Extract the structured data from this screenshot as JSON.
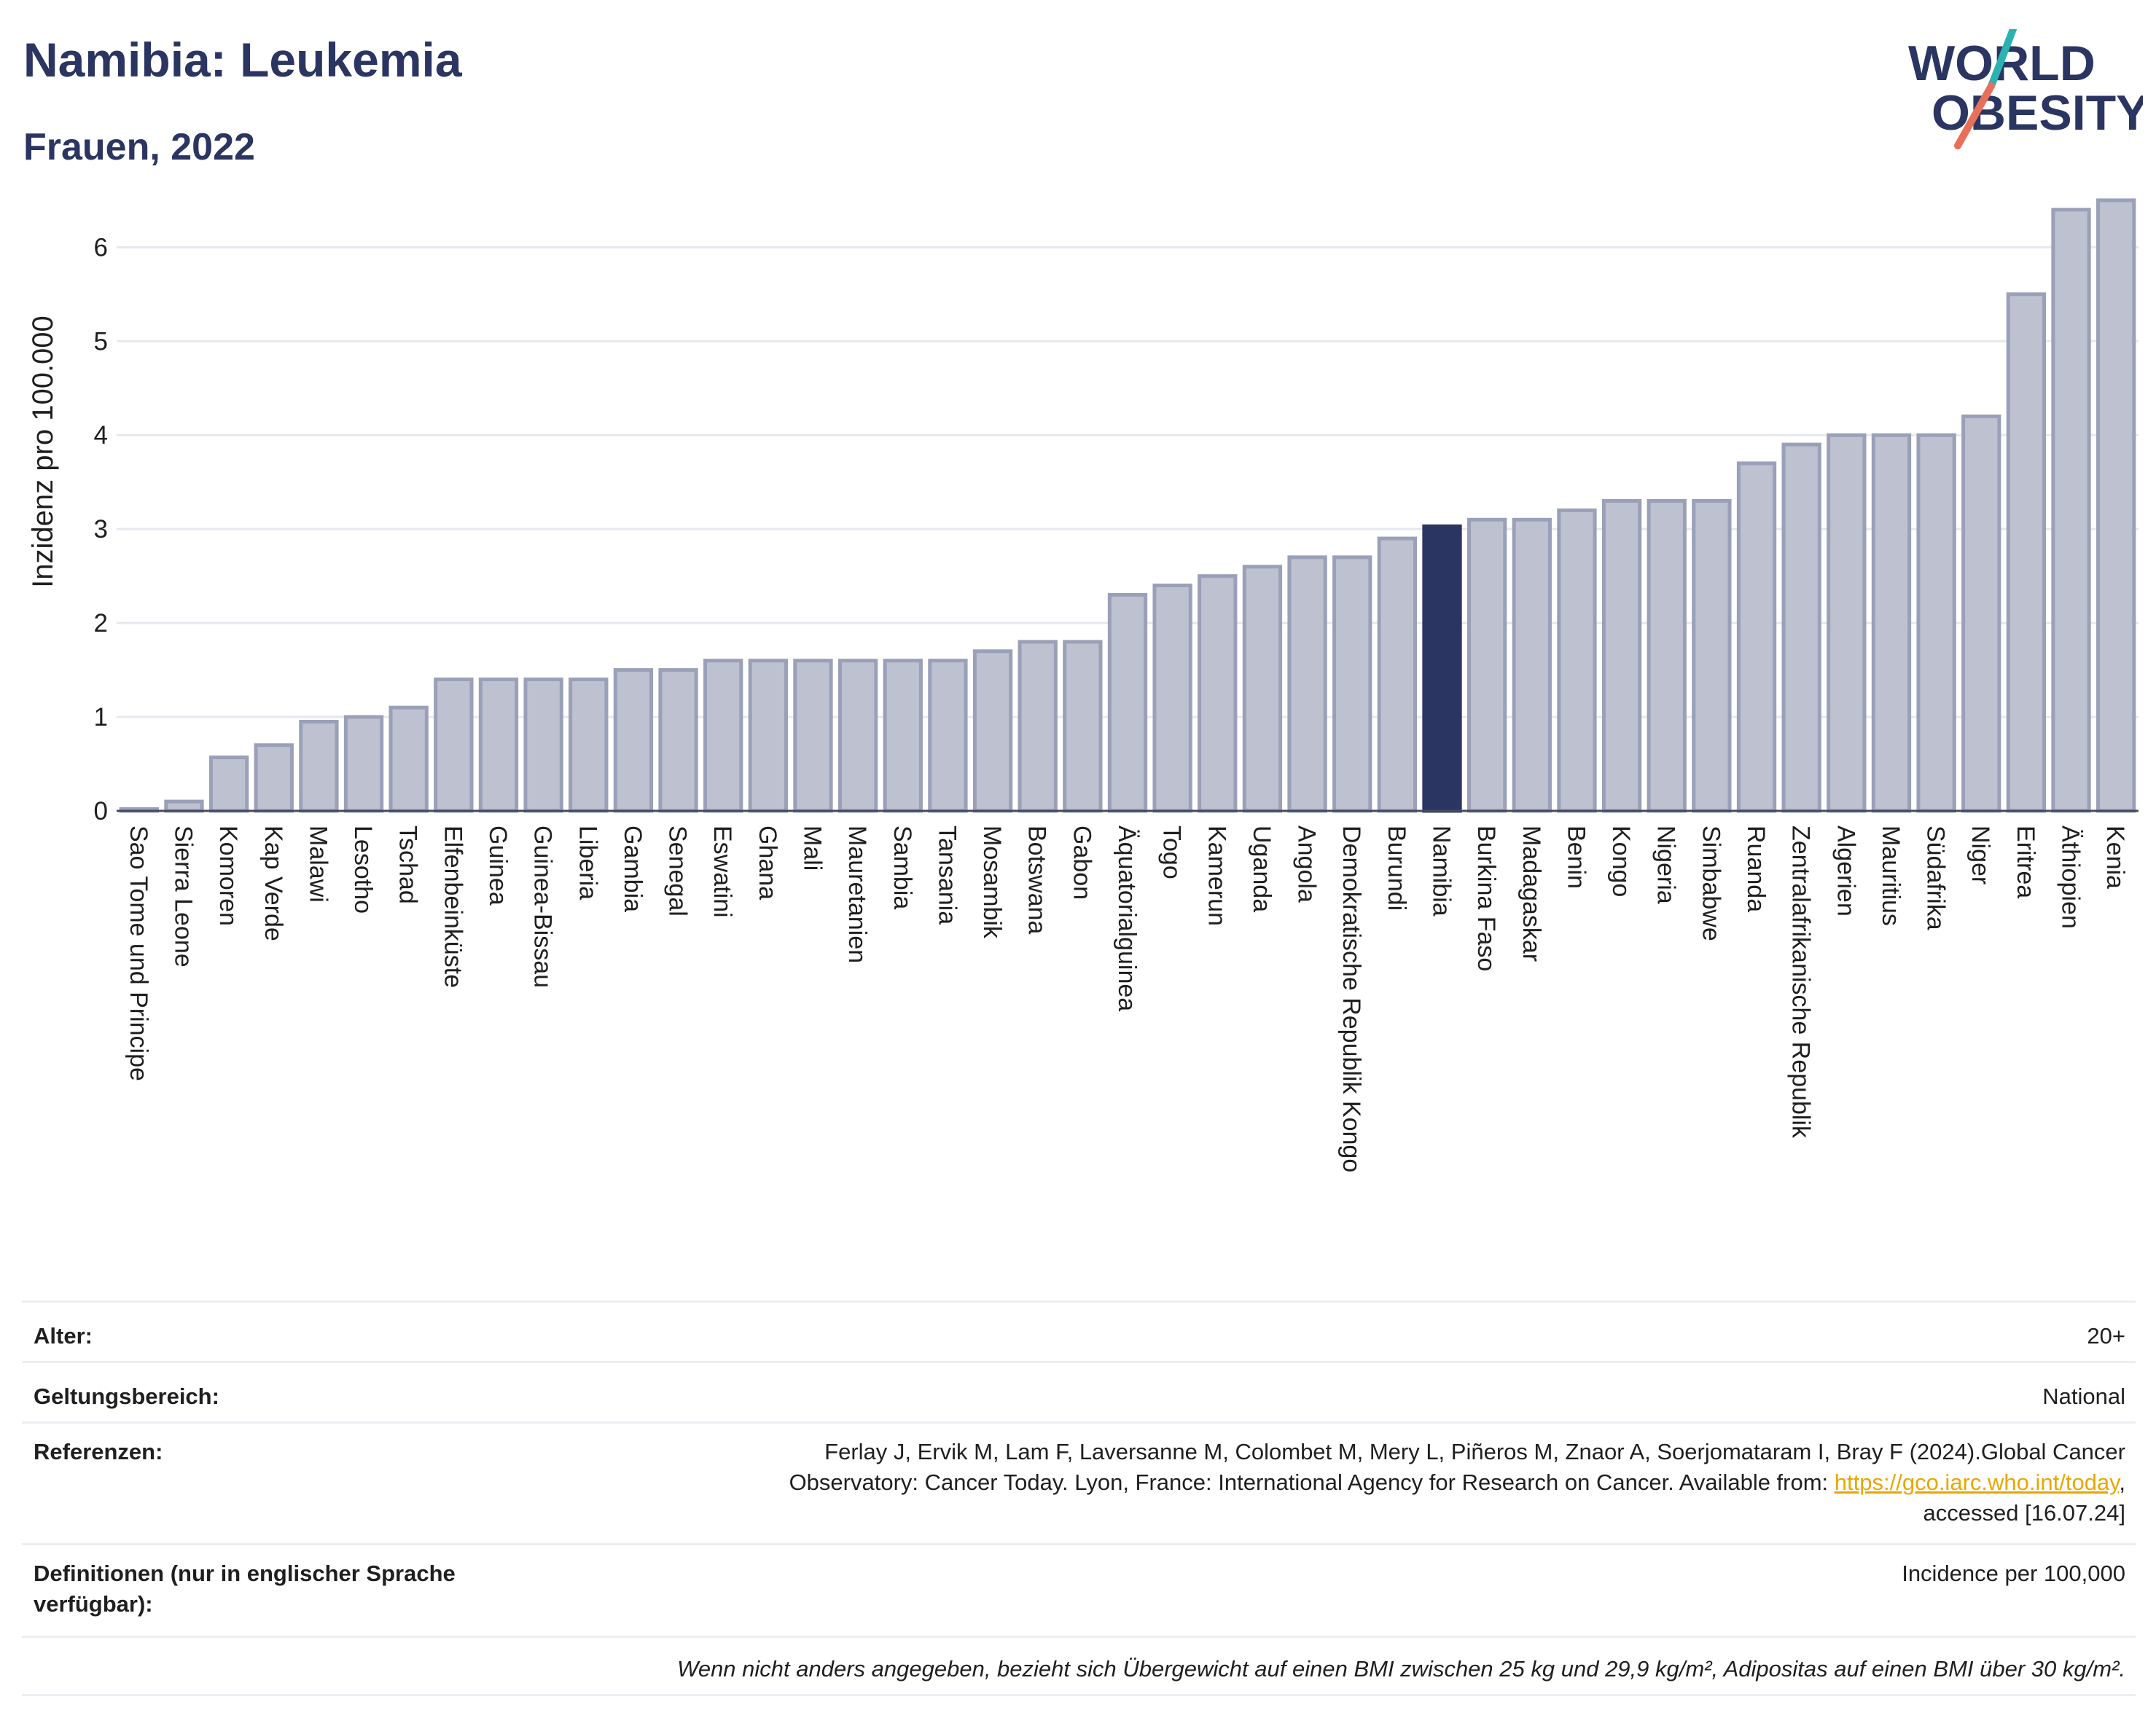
{
  "header": {
    "title": "Namibia: Leukemia",
    "subtitle": "Frauen, 2022",
    "logo_line1": "WORLD",
    "logo_line2": "OBESITY"
  },
  "colors": {
    "bar": "#bdc1d0",
    "bar_border": "#9aa0b8",
    "highlight": "#2b3561",
    "grid": "#e6e8ef",
    "text": "#1f1f1f",
    "logo_teal": "#2bb3b1",
    "logo_coral": "#e8705a"
  },
  "chart_data": {
    "type": "bar",
    "ylabel": "Inzidenz pro 100.000",
    "ylim": [
      0,
      6.6
    ],
    "yticks": [
      0,
      1,
      2,
      3,
      4,
      5,
      6
    ],
    "highlight": "Namibia",
    "categories": [
      "Sao Tome und Principe",
      "Sierra Leone",
      "Komoren",
      "Kap Verde",
      "Malawi",
      "Lesotho",
      "Tschad",
      "Elfenbeinküste",
      "Guinea",
      "Guinea-Bissau",
      "Liberia",
      "Gambia",
      "Senegal",
      "Eswatini",
      "Ghana",
      "Mali",
      "Mauretanien",
      "Sambia",
      "Tansania",
      "Mosambik",
      "Botswana",
      "Gabon",
      "Äquatorialguinea",
      "Togo",
      "Kamerun",
      "Uganda",
      "Angola",
      "Demokratische Republik Kongo",
      "Burundi",
      "Namibia",
      "Burkina Faso",
      "Madagaskar",
      "Benin",
      "Kongo",
      "Nigeria",
      "Simbabwe",
      "Ruanda",
      "Zentralafrikanische Republik",
      "Algerien",
      "Mauritius",
      "Südafrika",
      "Niger",
      "Eritrea",
      "Äthiopien",
      "Kenia"
    ],
    "values": [
      0.02,
      0.1,
      0.57,
      0.7,
      0.95,
      1.0,
      1.1,
      1.4,
      1.4,
      1.4,
      1.4,
      1.5,
      1.5,
      1.6,
      1.6,
      1.6,
      1.6,
      1.6,
      1.6,
      1.7,
      1.8,
      1.8,
      2.3,
      2.4,
      2.5,
      2.6,
      2.7,
      2.7,
      2.9,
      3.03,
      3.1,
      3.1,
      3.2,
      3.3,
      3.3,
      3.3,
      3.7,
      3.9,
      4.0,
      4.0,
      4.0,
      4.2,
      5.5,
      6.4,
      6.5
    ]
  },
  "info": {
    "age_label": "Alter:",
    "age_value": "20+",
    "scope_label": "Geltungsbereich:",
    "scope_value": "National",
    "refs_label": "Referenzen:",
    "refs_line1": "Ferlay J, Ervik M, Lam F, Laversanne M, Colombet M, Mery L, Piñeros M, Znaor A, Soerjomataram I, Bray F (2024).Global Cancer",
    "refs_line2": "Observatory: Cancer Today. Lyon, France: International Agency for Research on Cancer. Available from: ",
    "refs_link": "https://gco.iarc.who.int/today",
    "refs_line2_end": ",",
    "refs_line3": "accessed [16.07.24]",
    "def_label": "Definitionen (nur in englischer Sprache verfügbar):",
    "def_value": "Incidence per 100,000",
    "note": "Wenn nicht anders angegeben, bezieht sich Übergewicht auf einen BMI zwischen 25 kg und 29,9 kg/m², Adipositas auf einen BMI über 30 kg/m²."
  }
}
